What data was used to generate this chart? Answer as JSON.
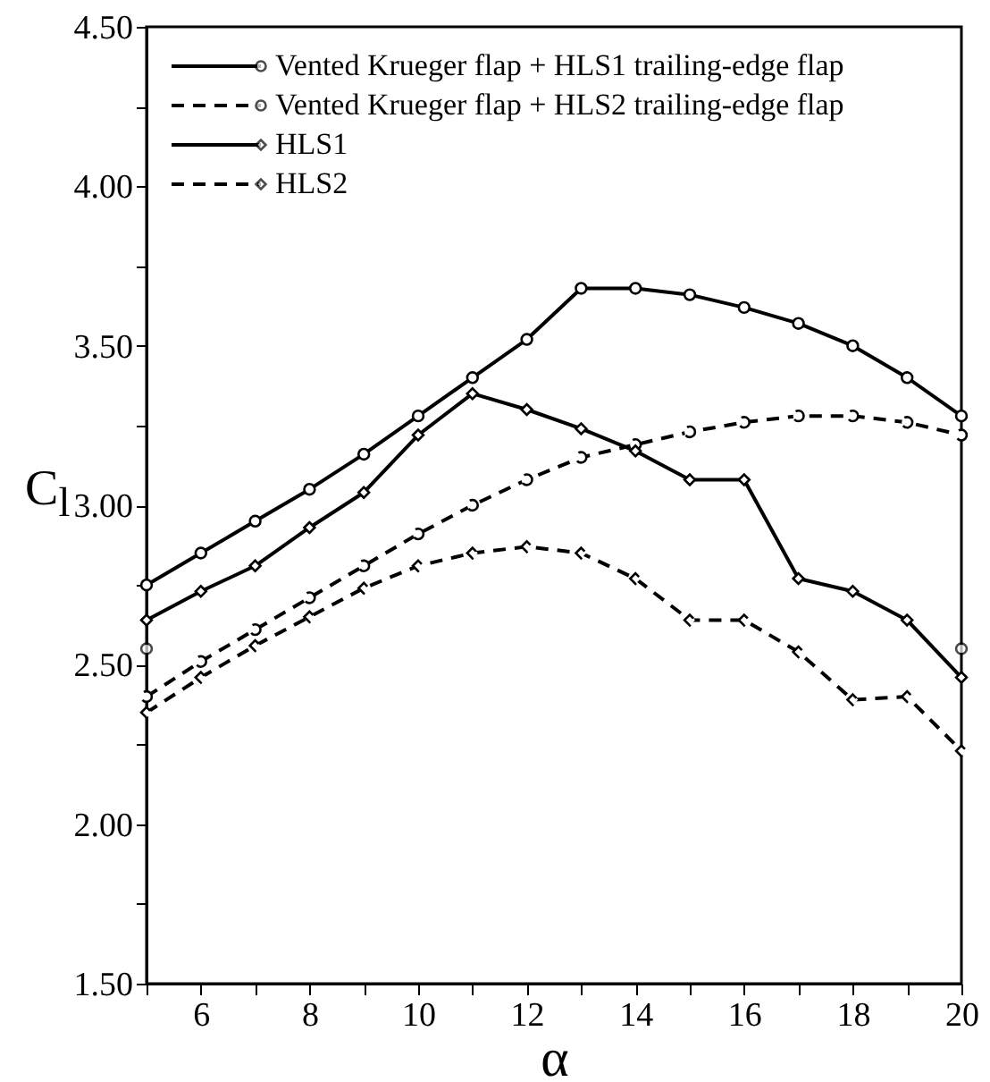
{
  "chart_data": {
    "type": "line",
    "xlabel": "α",
    "ylabel": "C$_{l}$",
    "x": [
      5,
      6,
      7,
      8,
      9,
      10,
      11,
      12,
      13,
      14,
      15,
      16,
      17,
      18,
      19,
      20
    ],
    "xlim": [
      5,
      20
    ],
    "xticks": [
      {
        "value": 5,
        "label": null
      },
      6,
      {
        "value": 7,
        "label": null
      },
      8,
      {
        "value": 9,
        "label": null
      },
      10,
      {
        "value": 11,
        "label": null
      },
      12,
      {
        "value": 13,
        "label": null
      },
      14,
      {
        "value": 15,
        "label": null
      },
      16,
      {
        "value": 17,
        "label": null
      },
      18,
      {
        "value": 19,
        "label": null
      },
      20
    ],
    "ylim": [
      1.5,
      4.5
    ],
    "yticks": [
      {
        "value": 1.5,
        "label": "1.50"
      },
      {
        "value": 1.75,
        "label": null
      },
      {
        "value": 2,
        "label": "2.00"
      },
      {
        "value": 2.25,
        "label": null
      },
      {
        "value": 2.5,
        "label": "2.50"
      },
      {
        "value": 2.75,
        "label": null
      },
      {
        "value": 3,
        "label": "3.00"
      },
      {
        "value": 3.25,
        "label": null
      },
      {
        "value": 3.5,
        "label": "3.50"
      },
      {
        "value": 3.75,
        "label": null
      },
      {
        "value": 4,
        "label": "4.00"
      },
      {
        "value": 4.25,
        "label": null
      },
      {
        "value": 4.5,
        "label": "4.50"
      }
    ],
    "legend": "top left",
    "series": [
      {
        "name": "Vented Krueger flap + HLS1 trailing-edge flap",
        "color": "#000000",
        "line_style": "solid",
        "marker": "circle",
        "values": [
          2.75,
          2.85,
          2.95,
          3.05,
          3.16,
          3.28,
          3.4,
          3.52,
          3.68,
          3.68,
          3.66,
          3.62,
          3.57,
          3.5,
          3.4,
          3.28
        ]
      },
      {
        "name": "Vented Krueger flap + HLS2 trailing-edge flap",
        "color": "#000000",
        "line_style": "dashed",
        "marker": "circle",
        "values": [
          2.4,
          2.51,
          2.61,
          2.71,
          2.81,
          2.91,
          3.0,
          3.08,
          3.15,
          3.19,
          3.23,
          3.26,
          3.28,
          3.28,
          3.26,
          3.22
        ]
      },
      {
        "name": "HLS1",
        "color": "#000000",
        "line_style": "solid",
        "marker": "diamond",
        "values": [
          2.64,
          2.73,
          2.81,
          2.93,
          3.04,
          3.22,
          3.35,
          3.3,
          3.24,
          3.17,
          3.08,
          3.08,
          2.77,
          2.73,
          2.64,
          2.46
        ]
      },
      {
        "name": "HLS2",
        "color": "#000000",
        "line_style": "dashed",
        "marker": "diamond",
        "values": [
          2.35,
          2.46,
          2.56,
          2.65,
          2.74,
          2.81,
          2.85,
          2.87,
          2.85,
          2.77,
          2.64,
          2.64,
          2.54,
          2.39,
          2.4,
          2.23
        ]
      },
      {
        "type": "scatter",
        "color": "#000000",
        "marker": "circle",
        "x": [
          5,
          20
        ],
        "values": [
          2.55,
          2.55
        ]
      }
    ]
  }
}
